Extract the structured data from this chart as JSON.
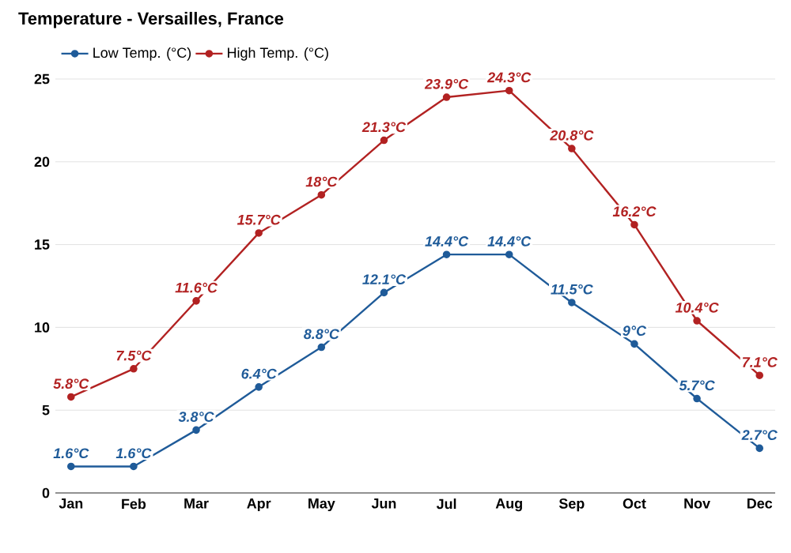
{
  "chart_data": {
    "type": "line",
    "title": "Temperature - Versailles, France",
    "categories": [
      "Jan",
      "Feb",
      "Mar",
      "Apr",
      "May",
      "Jun",
      "Jul",
      "Aug",
      "Sep",
      "Oct",
      "Nov",
      "Dec"
    ],
    "series": [
      {
        "name": "Low Temp. (°C)",
        "color": "#1f5b99",
        "values": [
          1.6,
          1.6,
          3.8,
          6.4,
          8.8,
          12.1,
          14.4,
          14.4,
          11.5,
          9,
          5.7,
          2.7
        ],
        "value_labels": [
          "1.6°C",
          "1.6°C",
          "3.8°C",
          "6.4°C",
          "8.8°C",
          "12.1°C",
          "14.4°C",
          "14.4°C",
          "11.5°C",
          "9°C",
          "5.7°C",
          "2.7°C"
        ]
      },
      {
        "name": "High Temp. (°C)",
        "color": "#b22222",
        "values": [
          5.8,
          7.5,
          11.6,
          15.7,
          18,
          21.3,
          23.9,
          24.3,
          20.8,
          16.2,
          10.4,
          7.1
        ],
        "value_labels": [
          "5.8°C",
          "7.5°C",
          "11.6°C",
          "15.7°C",
          "18°C",
          "21.3°C",
          "23.9°C",
          "24.3°C",
          "20.8°C",
          "16.2°C",
          "10.4°C",
          "7.1°C"
        ]
      }
    ],
    "ylim": [
      0,
      25
    ],
    "yticks": [
      0,
      5,
      10,
      15,
      20,
      25
    ],
    "grid": "y",
    "legend": "top left",
    "marker": "circle",
    "line_style": "solid"
  }
}
